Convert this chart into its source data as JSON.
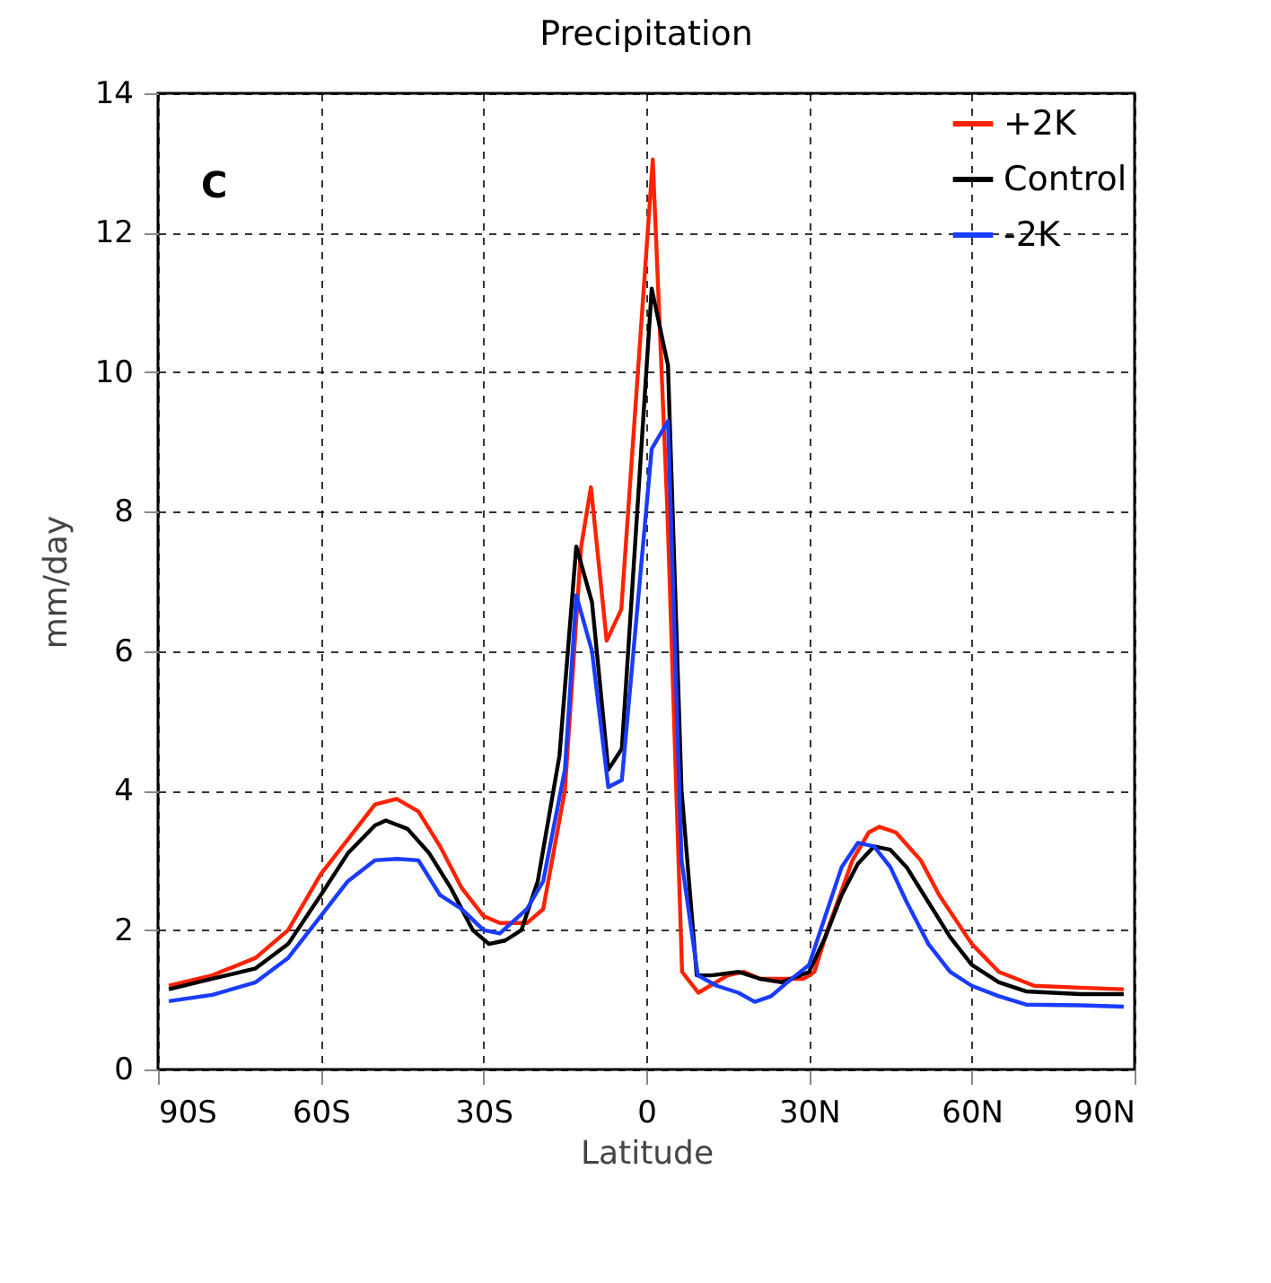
{
  "chart_data": {
    "type": "line",
    "title": "Precipitation",
    "xlabel": "Latitude",
    "ylabel": "mm/day",
    "annotations": [
      "C"
    ],
    "xlim": [
      -90,
      90
    ],
    "ylim": [
      0,
      14
    ],
    "xticks": [
      {
        "value": -90,
        "label": "90S"
      },
      {
        "value": -60,
        "label": "60S"
      },
      {
        "value": -30,
        "label": "30S"
      },
      0,
      {
        "value": 30,
        "label": "30N"
      },
      {
        "value": 60,
        "label": "60N"
      },
      {
        "value": 90,
        "label": "90N"
      }
    ],
    "yticks": [
      0,
      2,
      4,
      6,
      8,
      10,
      12,
      14
    ],
    "grid": true,
    "legend": "top right",
    "line_style": "solid",
    "marker": "none",
    "series": [
      {
        "name": "+2K",
        "color": "#ff2200",
        "x": [
          -88,
          -80,
          -72,
          -66,
          -60,
          -55,
          -50,
          -46,
          -42,
          -38,
          -34,
          -30,
          -27,
          -22,
          -19,
          -15,
          -12,
          -10.2,
          -7.3,
          -4.6,
          1.2,
          3.9,
          6.6,
          9.6,
          15,
          18,
          21,
          29,
          31,
          33.4,
          38,
          41,
          43,
          46,
          50.6,
          54,
          60,
          65,
          71.5,
          81,
          88
        ],
        "values": [
          1.2,
          1.35,
          1.6,
          2.0,
          2.8,
          3.3,
          3.8,
          3.88,
          3.7,
          3.2,
          2.6,
          2.2,
          2.1,
          2.1,
          2.3,
          4.0,
          7.5,
          8.35,
          6.15,
          6.6,
          13.05,
          8.0,
          1.4,
          1.1,
          1.35,
          1.4,
          1.3,
          1.3,
          1.4,
          2.0,
          3.0,
          3.4,
          3.48,
          3.4,
          3.0,
          2.5,
          1.8,
          1.4,
          1.2,
          1.17,
          1.15
        ]
      },
      {
        "name": "Control",
        "color": "#000000",
        "x": [
          -88,
          -80,
          -72,
          -66,
          -60,
          -55,
          -50,
          -48,
          -44,
          -40,
          -36,
          -32,
          -29,
          -26,
          -23,
          -20,
          -16,
          -12.9,
          -10,
          -7,
          -4.5,
          1,
          4,
          6.5,
          9.3,
          12,
          17,
          21,
          25,
          30,
          33,
          36,
          39,
          42,
          45,
          48,
          52,
          56,
          60,
          65,
          70,
          80,
          88
        ],
        "values": [
          1.15,
          1.3,
          1.45,
          1.8,
          2.5,
          3.1,
          3.5,
          3.57,
          3.45,
          3.1,
          2.6,
          2.0,
          1.8,
          1.85,
          2.0,
          2.7,
          4.5,
          7.5,
          6.7,
          4.3,
          4.6,
          11.2,
          10.1,
          4.0,
          1.35,
          1.35,
          1.4,
          1.3,
          1.25,
          1.4,
          1.9,
          2.5,
          2.95,
          3.2,
          3.15,
          2.9,
          2.4,
          1.9,
          1.5,
          1.25,
          1.12,
          1.08,
          1.08
        ]
      },
      {
        "name": "-2K",
        "color": "#1a3cff",
        "x": [
          -88,
          -80,
          -72,
          -66,
          -60,
          -55,
          -50,
          -46,
          -42,
          -38,
          -34,
          -30,
          -27,
          -22,
          -19,
          -15,
          -12.9,
          -10,
          -7,
          -4.5,
          1,
          4,
          6.5,
          9.5,
          13,
          17,
          20,
          23,
          26,
          30,
          33,
          36,
          39,
          42,
          45,
          48,
          52,
          56,
          60,
          65,
          70,
          80,
          88
        ],
        "values": [
          0.98,
          1.07,
          1.25,
          1.6,
          2.2,
          2.7,
          3.0,
          3.02,
          3.0,
          2.5,
          2.3,
          2.0,
          1.95,
          2.3,
          2.7,
          4.3,
          6.8,
          6.0,
          4.05,
          4.15,
          8.9,
          9.3,
          3.0,
          1.35,
          1.2,
          1.1,
          0.97,
          1.05,
          1.25,
          1.5,
          2.2,
          2.9,
          3.25,
          3.2,
          2.9,
          2.4,
          1.8,
          1.4,
          1.2,
          1.05,
          0.93,
          0.92,
          0.9
        ]
      }
    ]
  }
}
